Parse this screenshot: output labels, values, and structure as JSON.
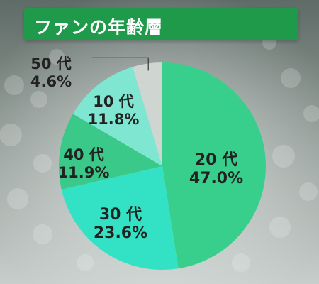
{
  "title": "ファンの年齢層",
  "chart_data": {
    "type": "pie",
    "title": "ファンの年齢層",
    "start_angle_deg": 0,
    "direction": "clockwise",
    "slices": [
      {
        "label": "20 代",
        "value": 47.0,
        "value_label": "47.0%",
        "color": "#38cf8c"
      },
      {
        "label": "30 代",
        "value": 23.6,
        "value_label": "23.6%",
        "color": "#33e2c4"
      },
      {
        "label": "40 代",
        "value": 11.9,
        "value_label": "11.9%",
        "color": "#3bc98a"
      },
      {
        "label": "10 代",
        "value": 11.8,
        "value_label": "11.8%",
        "color": "#7fe6d2"
      },
      {
        "label": "50 代",
        "value": 4.6,
        "value_label": "4.6%",
        "color": "#cfd6d2"
      }
    ]
  }
}
